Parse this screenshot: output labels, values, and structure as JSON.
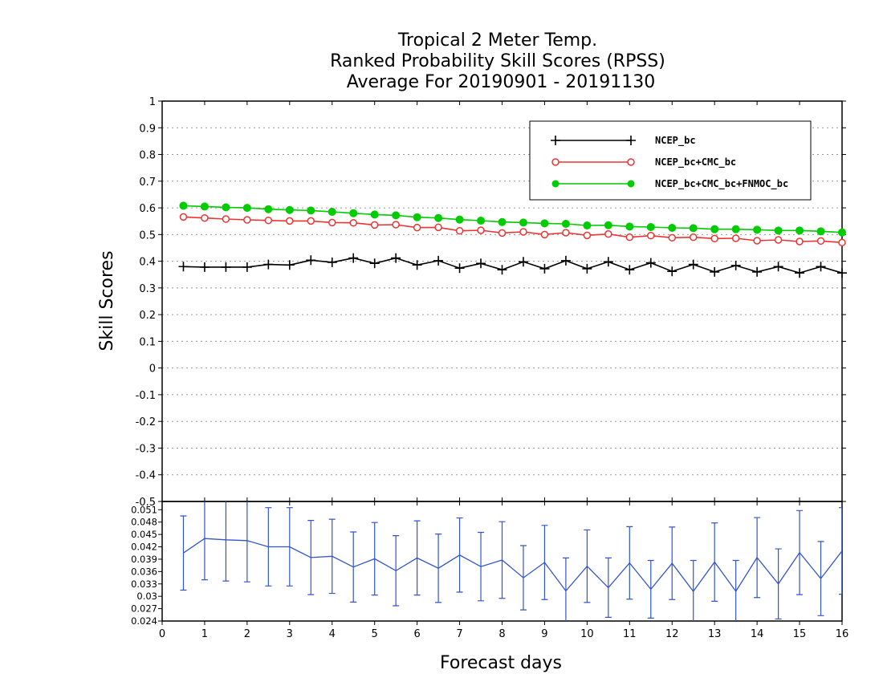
{
  "title": {
    "line1": "Tropical 2 Meter Temp.",
    "line2": "Ranked Probability Skill Scores (RPSS)",
    "line3": "Average For 20190901 - 20191130"
  },
  "chart_data": [
    {
      "type": "line",
      "xlabel": "Forecast days",
      "ylabel": "Skill Scores",
      "xlim": [
        0,
        16
      ],
      "ylim": [
        -0.5,
        1
      ],
      "yticks": [
        "1",
        "0.9",
        "0.8",
        "0.7",
        "0.6",
        "0.5",
        "0.4",
        "0.3",
        "0.2",
        "0.1",
        "0",
        "-0.1",
        "-0.2",
        "-0.3",
        "-0.4",
        "-0.5"
      ],
      "xticks": [
        "0",
        "1",
        "2",
        "3",
        "4",
        "5",
        "6",
        "7",
        "8",
        "9",
        "10",
        "11",
        "12",
        "13",
        "14",
        "15",
        "16"
      ],
      "grid": "horizontal dotted",
      "legend_position": "top-right",
      "x": [
        0.5,
        1,
        1.5,
        2,
        2.5,
        3,
        3.5,
        4,
        4.5,
        5,
        5.5,
        6,
        6.5,
        7,
        7.5,
        8,
        8.5,
        9,
        9.5,
        10,
        10.5,
        11,
        11.5,
        12,
        12.5,
        13,
        13.5,
        14,
        14.5,
        15,
        15.5,
        16
      ],
      "series": [
        {
          "name": "NCEP_bc",
          "color": "#000000",
          "marker": "plus",
          "values": [
            0.38,
            0.378,
            0.378,
            0.378,
            0.388,
            0.386,
            0.404,
            0.396,
            0.412,
            0.392,
            0.412,
            0.386,
            0.402,
            0.374,
            0.392,
            0.368,
            0.398,
            0.372,
            0.402,
            0.372,
            0.398,
            0.368,
            0.394,
            0.362,
            0.388,
            0.36,
            0.384,
            0.36,
            0.38,
            0.356,
            0.38,
            0.356
          ]
        },
        {
          "name": "NCEP_bc+CMC_bc",
          "color": "#ee3333",
          "marker": "open-circle",
          "values": [
            0.566,
            0.562,
            0.558,
            0.555,
            0.553,
            0.551,
            0.551,
            0.545,
            0.544,
            0.536,
            0.537,
            0.526,
            0.527,
            0.514,
            0.516,
            0.506,
            0.51,
            0.5,
            0.507,
            0.497,
            0.502,
            0.49,
            0.496,
            0.488,
            0.49,
            0.485,
            0.486,
            0.477,
            0.48,
            0.474,
            0.476,
            0.47
          ]
        },
        {
          "name": "NCEP_bc+CMC_bc+FNMOC_bc",
          "color": "#00cc00",
          "marker": "filled-circle",
          "values": [
            0.608,
            0.605,
            0.602,
            0.6,
            0.595,
            0.592,
            0.59,
            0.585,
            0.58,
            0.575,
            0.572,
            0.565,
            0.562,
            0.556,
            0.552,
            0.547,
            0.545,
            0.542,
            0.54,
            0.534,
            0.535,
            0.53,
            0.528,
            0.525,
            0.524,
            0.52,
            0.52,
            0.518,
            0.515,
            0.515,
            0.512,
            0.508
          ]
        }
      ]
    },
    {
      "type": "line",
      "ylim": [
        0.024,
        0.053
      ],
      "yticks": [
        "0.051",
        "0.048",
        "0.045",
        "0.042",
        "0.039",
        "0.036",
        "0.033",
        "0.03",
        "0.027",
        "0.024"
      ],
      "color": "#3355cc",
      "x": [
        0.5,
        1,
        1.5,
        2,
        2.5,
        3,
        3.5,
        4,
        4.5,
        5,
        5.5,
        6,
        6.5,
        7,
        7.5,
        8,
        8.5,
        9,
        9.5,
        10,
        10.5,
        11,
        11.5,
        12,
        12.5,
        13,
        13.5,
        14,
        14.5,
        15,
        15.5,
        16
      ],
      "values": [
        0.0405,
        0.044,
        0.0437,
        0.0435,
        0.042,
        0.042,
        0.0394,
        0.0397,
        0.0371,
        0.0391,
        0.0362,
        0.0393,
        0.0368,
        0.04,
        0.0372,
        0.0388,
        0.0345,
        0.0382,
        0.0313,
        0.0373,
        0.0321,
        0.0381,
        0.0317,
        0.038,
        0.0312,
        0.0383,
        0.0312,
        0.0394,
        0.033,
        0.0406,
        0.0343,
        0.041
      ],
      "error_bars": [
        0.009,
        0.01,
        0.01,
        0.01,
        0.0095,
        0.0095,
        0.009,
        0.009,
        0.0085,
        0.0088,
        0.0085,
        0.009,
        0.0083,
        0.009,
        0.0083,
        0.0093,
        0.0078,
        0.009,
        0.008,
        0.0088,
        0.0072,
        0.0088,
        0.007,
        0.0088,
        0.0075,
        0.0095,
        0.0075,
        0.0097,
        0.0085,
        0.0102,
        0.009,
        0.0105
      ]
    }
  ]
}
